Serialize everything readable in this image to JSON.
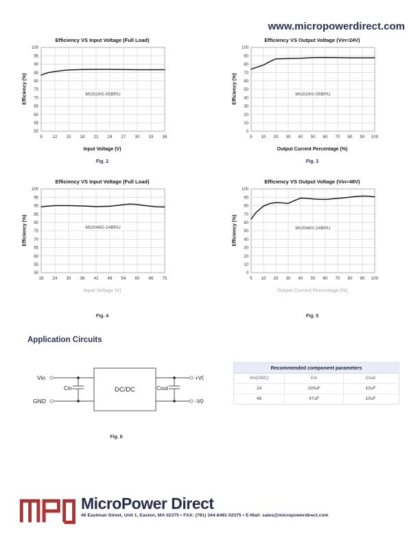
{
  "page": {
    "header_url": "www.micropowerdirect.com"
  },
  "section": {
    "application_circuits_heading": "Application Circuits"
  },
  "chart_data": [
    {
      "type": "line",
      "title": "Efficiency VS Input Voltage (Full Load)",
      "ylabel": "Efficiency (%)",
      "xlabel": "Input Voltage (V)",
      "caption": "Fig. 2",
      "series_label": "MI2024S-05BRU",
      "x_ticks": [
        9,
        12,
        15,
        18,
        21,
        24,
        27,
        30,
        33,
        36
      ],
      "y_min": 50,
      "y_max": 100,
      "y_step": 5,
      "grid": true,
      "legend": "none",
      "points": [
        [
          9,
          83.5
        ],
        [
          10.5,
          84.9
        ],
        [
          12,
          85.6
        ],
        [
          13.5,
          86.2
        ],
        [
          15,
          86.5
        ],
        [
          18,
          86.8
        ],
        [
          21,
          86.9
        ],
        [
          24,
          86.9
        ],
        [
          27,
          86.8
        ],
        [
          30,
          86.7
        ],
        [
          33,
          86.7
        ],
        [
          36,
          86.7
        ]
      ]
    },
    {
      "type": "line",
      "title": "Efficiency VS Output Voltage (Vin=24V)",
      "ylabel": "Efficiency (%)",
      "xlabel": "Output Current Percentage (%)",
      "caption": "Fig. 3",
      "series_label": "MI2024S-05BRU",
      "x_ticks": [
        5,
        10,
        20,
        30,
        40,
        50,
        60,
        70,
        80,
        90,
        100
      ],
      "y_min": 0,
      "y_max": 100,
      "y_step": 10,
      "grid": true,
      "legend": "none",
      "points": [
        [
          5,
          74
        ],
        [
          10,
          79
        ],
        [
          15,
          83
        ],
        [
          20,
          86.3
        ],
        [
          30,
          86.6
        ],
        [
          40,
          87
        ],
        [
          50,
          87.8
        ],
        [
          60,
          88
        ],
        [
          70,
          87.8
        ],
        [
          80,
          87.5
        ],
        [
          90,
          87.5
        ],
        [
          100,
          87.6
        ]
      ]
    },
    {
      "type": "line",
      "title": "Efficiency VS Input Voltage (Full Load)",
      "ylabel": "Efficiency (%)",
      "xlabel": "Input Voltage (V)",
      "caption": "Fig. 4",
      "series_label": "MI2048S-24BRU",
      "x_ticks": [
        18,
        24,
        30,
        36,
        42,
        48,
        54,
        60,
        66,
        75
      ],
      "y_min": 50,
      "y_max": 100,
      "y_step": 5,
      "grid": true,
      "legend": "none",
      "points": [
        [
          18,
          89.3
        ],
        [
          21,
          89.7
        ],
        [
          24,
          90
        ],
        [
          30,
          90
        ],
        [
          36,
          89.8
        ],
        [
          42,
          89.4
        ],
        [
          48,
          89.6
        ],
        [
          54,
          90.6
        ],
        [
          57,
          91
        ],
        [
          60,
          90.7
        ],
        [
          66,
          89.6
        ],
        [
          70,
          89.3
        ],
        [
          75,
          89.2
        ]
      ]
    },
    {
      "type": "line",
      "title": "Efficiency VS Output Voltage (Vin=48V)",
      "ylabel": "Efficiency (%)",
      "xlabel": "Output Current Percentage (%)",
      "caption": "Fig. 5",
      "series_label": "MI2048S-24BRU",
      "x_ticks": [
        5,
        10,
        20,
        30,
        40,
        50,
        60,
        70,
        80,
        90,
        100
      ],
      "y_min": 0,
      "y_max": 100,
      "y_step": 10,
      "grid": true,
      "legend": "none",
      "points": [
        [
          5,
          64
        ],
        [
          7,
          72
        ],
        [
          10,
          79.5
        ],
        [
          15,
          82.5
        ],
        [
          20,
          83.7
        ],
        [
          25,
          83.3
        ],
        [
          30,
          82.7
        ],
        [
          35,
          86
        ],
        [
          40,
          89
        ],
        [
          45,
          88.7
        ],
        [
          50,
          88
        ],
        [
          55,
          87.6
        ],
        [
          60,
          87.4
        ],
        [
          65,
          88
        ],
        [
          70,
          88.7
        ],
        [
          75,
          89.3
        ],
        [
          80,
          90.2
        ],
        [
          85,
          91
        ],
        [
          90,
          91.5
        ],
        [
          95,
          91.3
        ],
        [
          100,
          90.5
        ]
      ]
    }
  ],
  "circuit": {
    "vin": "Vin",
    "gnd": "GND",
    "cin": "Cin",
    "cout": "Cout",
    "box": "DC/DC",
    "vpos": "+V0",
    "vneg": "-V0",
    "caption": "Fig. 6"
  },
  "table": {
    "title": "Recommended component parameters",
    "headers": [
      "Vin(VDC)",
      "Cin",
      "Cout"
    ],
    "rows": [
      [
        "24",
        "100uF",
        "10uF"
      ],
      [
        "48",
        "47uF",
        "10uF"
      ]
    ]
  },
  "footer": {
    "logo_text": "MPD",
    "brand": "MicroPower Direct",
    "address": "46 Eastman Street, Unit 1, Easton, MA 02375 • FAX: (781) 344-8481 02375 • E-Mail: sales@micropowerdirect.com"
  },
  "colors": {
    "accent_navy": "#2b2c4e",
    "logo_red": "#b03333",
    "table_header_bg": "#e9ebf8",
    "grid_line": "#cbcbcb",
    "curve": "#1b1b1b",
    "muted_label": "#bfbfbf"
  }
}
